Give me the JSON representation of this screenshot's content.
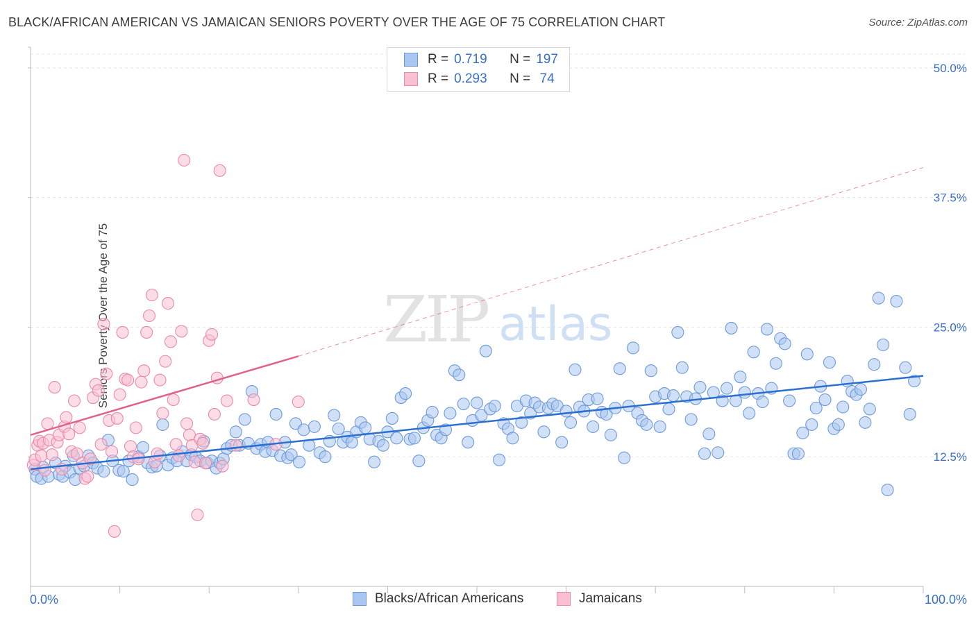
{
  "header": {
    "title": "BLACK/AFRICAN AMERICAN VS JAMAICAN SENIORS POVERTY OVER THE AGE OF 75 CORRELATION CHART",
    "source": "Source: ZipAtlas.com"
  },
  "watermark": {
    "zip": "ZIP",
    "atlas": "atlas"
  },
  "legend": {
    "rows": [
      {
        "r_label": "R =",
        "r_value": "0.719",
        "n_label": "N =",
        "n_value": "197",
        "color": "#a9c7f0",
        "border": "#6f9ad8"
      },
      {
        "r_label": "R =",
        "r_value": "0.293",
        "n_label": "N =",
        "n_value": " 74",
        "color": "#f9c0d2",
        "border": "#e98aab"
      }
    ]
  },
  "chart_data": {
    "type": "scatter",
    "title": "BLACK/AFRICAN AMERICAN VS JAMAICAN SENIORS POVERTY OVER THE AGE OF 75 CORRELATION CHART",
    "xlabel": "",
    "ylabel": "Seniors Poverty Over the Age of 75",
    "xlim": [
      0,
      100
    ],
    "ylim": [
      0,
      52
    ],
    "x_tick_labels": [
      "0.0%",
      "100.0%"
    ],
    "y_ticks": [
      12.5,
      25.0,
      37.5,
      50.0
    ],
    "y_tick_labels": [
      "12.5%",
      "25.0%",
      "37.5%",
      "50.0%"
    ],
    "grid": true,
    "legend_position": "top-center",
    "series": [
      {
        "name": "Blacks/African Americans",
        "color": "#a9c7f0",
        "stroke": "#6f9ad8",
        "line_color": "#2a6fd1",
        "trend": {
          "x0": 0,
          "y0": 11.3,
          "x1": 100,
          "y1": 20.3
        },
        "points": [
          [
            0.5,
            11.3
          ],
          [
            0.7,
            10.6
          ],
          [
            1.2,
            10.4
          ],
          [
            1.4,
            11.5
          ],
          [
            2.0,
            10.6
          ],
          [
            2.8,
            11.9
          ],
          [
            3.2,
            10.8
          ],
          [
            3.6,
            10.6
          ],
          [
            3.9,
            11.6
          ],
          [
            4.4,
            11.0
          ],
          [
            4.8,
            12.6
          ],
          [
            5.0,
            10.3
          ],
          [
            5.5,
            11.4
          ],
          [
            6.0,
            11.6
          ],
          [
            6.5,
            12.6
          ],
          [
            7.0,
            11.9
          ],
          [
            7.5,
            11.4
          ],
          [
            8.2,
            11.1
          ],
          [
            8.7,
            14.1
          ],
          [
            9.2,
            12.1
          ],
          [
            9.9,
            11.2
          ],
          [
            10.4,
            11.1
          ],
          [
            11.0,
            12.1
          ],
          [
            11.4,
            10.3
          ],
          [
            12.1,
            12.5
          ],
          [
            12.6,
            13.4
          ],
          [
            13.1,
            11.9
          ],
          [
            13.6,
            11.5
          ],
          [
            14.1,
            11.6
          ],
          [
            14.5,
            12.6
          ],
          [
            14.8,
            15.6
          ],
          [
            15.4,
            11.7
          ],
          [
            15.9,
            12.4
          ],
          [
            16.4,
            12.1
          ],
          [
            17.0,
            13.0
          ],
          [
            17.5,
            12.1
          ],
          [
            18.0,
            12.7
          ],
          [
            18.5,
            12.5
          ],
          [
            19.0,
            12.1
          ],
          [
            19.4,
            14.0
          ],
          [
            19.8,
            11.9
          ],
          [
            20.3,
            12.1
          ],
          [
            20.8,
            11.4
          ],
          [
            21.2,
            11.9
          ],
          [
            21.6,
            12.3
          ],
          [
            22.0,
            13.3
          ],
          [
            22.5,
            13.6
          ],
          [
            23.0,
            14.9
          ],
          [
            23.4,
            13.6
          ],
          [
            24.0,
            16.1
          ],
          [
            24.4,
            13.8
          ],
          [
            24.8,
            18.8
          ],
          [
            25.3,
            13.3
          ],
          [
            25.8,
            13.7
          ],
          [
            26.3,
            13.0
          ],
          [
            26.6,
            13.9
          ],
          [
            27.1,
            13.1
          ],
          [
            27.5,
            16.6
          ],
          [
            28.0,
            12.6
          ],
          [
            28.5,
            13.9
          ],
          [
            28.8,
            12.4
          ],
          [
            29.2,
            12.7
          ],
          [
            29.7,
            15.7
          ],
          [
            30.1,
            12.0
          ],
          [
            30.6,
            15.1
          ],
          [
            31.2,
            13.6
          ],
          [
            31.8,
            15.4
          ],
          [
            32.4,
            12.9
          ],
          [
            33.0,
            12.5
          ],
          [
            33.5,
            14.0
          ],
          [
            34.0,
            16.5
          ],
          [
            34.5,
            15.2
          ],
          [
            35.0,
            13.9
          ],
          [
            35.5,
            14.4
          ],
          [
            36.0,
            13.9
          ],
          [
            36.5,
            14.9
          ],
          [
            37.0,
            15.8
          ],
          [
            37.5,
            15.3
          ],
          [
            38.0,
            14.2
          ],
          [
            38.5,
            12.0
          ],
          [
            39.0,
            14.0
          ],
          [
            39.5,
            13.6
          ],
          [
            40.0,
            14.9
          ],
          [
            40.5,
            16.2
          ],
          [
            41.0,
            14.3
          ],
          [
            41.5,
            18.2
          ],
          [
            42.0,
            18.6
          ],
          [
            42.5,
            14.2
          ],
          [
            43.0,
            14.3
          ],
          [
            43.5,
            12.1
          ],
          [
            44.0,
            15.3
          ],
          [
            44.5,
            16.0
          ],
          [
            45.0,
            16.8
          ],
          [
            45.5,
            14.6
          ],
          [
            46.0,
            14.3
          ],
          [
            46.5,
            15.1
          ],
          [
            47.0,
            16.7
          ],
          [
            47.5,
            20.8
          ],
          [
            48.0,
            20.4
          ],
          [
            48.5,
            17.6
          ],
          [
            49.0,
            13.9
          ],
          [
            49.5,
            16.0
          ],
          [
            50.0,
            17.7
          ],
          [
            50.5,
            16.5
          ],
          [
            51.0,
            22.7
          ],
          [
            51.5,
            17.1
          ],
          [
            52.0,
            17.4
          ],
          [
            52.5,
            12.2
          ],
          [
            53.0,
            15.7
          ],
          [
            53.5,
            15.2
          ],
          [
            54.0,
            14.3
          ],
          [
            54.5,
            17.4
          ],
          [
            55.0,
            15.8
          ],
          [
            55.5,
            17.9
          ],
          [
            56.0,
            16.7
          ],
          [
            56.5,
            17.7
          ],
          [
            57.0,
            17.3
          ],
          [
            57.5,
            14.9
          ],
          [
            58.0,
            17.2
          ],
          [
            58.5,
            17.6
          ],
          [
            59.0,
            17.4
          ],
          [
            59.5,
            13.9
          ],
          [
            60.0,
            16.9
          ],
          [
            60.5,
            15.8
          ],
          [
            61.0,
            20.9
          ],
          [
            61.5,
            17.3
          ],
          [
            62.0,
            16.9
          ],
          [
            62.5,
            18.0
          ],
          [
            63.0,
            15.4
          ],
          [
            63.5,
            18.1
          ],
          [
            64.0,
            16.8
          ],
          [
            64.5,
            16.6
          ],
          [
            65.0,
            14.6
          ],
          [
            65.5,
            17.2
          ],
          [
            66.0,
            21.0
          ],
          [
            66.5,
            12.4
          ],
          [
            67.0,
            17.4
          ],
          [
            67.5,
            23.0
          ],
          [
            68.0,
            16.7
          ],
          [
            68.5,
            16.0
          ],
          [
            69.0,
            15.6
          ],
          [
            69.5,
            20.8
          ],
          [
            70.0,
            18.3
          ],
          [
            70.5,
            15.4
          ],
          [
            71.0,
            18.6
          ],
          [
            71.5,
            17.1
          ],
          [
            72.0,
            18.4
          ],
          [
            72.5,
            24.5
          ],
          [
            73.0,
            21.1
          ],
          [
            73.5,
            18.3
          ],
          [
            74.0,
            16.1
          ],
          [
            74.5,
            18.1
          ],
          [
            75.0,
            19.2
          ],
          [
            75.5,
            12.8
          ],
          [
            76.0,
            14.7
          ],
          [
            76.5,
            18.7
          ],
          [
            77.0,
            12.9
          ],
          [
            77.5,
            17.9
          ],
          [
            78.0,
            19.1
          ],
          [
            78.5,
            24.9
          ],
          [
            79.0,
            17.9
          ],
          [
            79.5,
            20.2
          ],
          [
            80.0,
            18.7
          ],
          [
            80.5,
            16.7
          ],
          [
            81.0,
            22.6
          ],
          [
            81.5,
            18.6
          ],
          [
            82.0,
            17.8
          ],
          [
            82.5,
            24.8
          ],
          [
            83.0,
            19.1
          ],
          [
            83.5,
            21.5
          ],
          [
            84.0,
            23.9
          ],
          [
            84.5,
            23.4
          ],
          [
            85.0,
            17.9
          ],
          [
            85.5,
            12.8
          ],
          [
            86.0,
            12.8
          ],
          [
            86.5,
            14.8
          ],
          [
            87.0,
            22.4
          ],
          [
            87.5,
            15.6
          ],
          [
            88.0,
            17.2
          ],
          [
            88.5,
            19.3
          ],
          [
            89.0,
            18.0
          ],
          [
            89.5,
            21.6
          ],
          [
            90.0,
            15.2
          ],
          [
            90.5,
            15.6
          ],
          [
            91.0,
            17.3
          ],
          [
            91.5,
            19.8
          ],
          [
            92.0,
            18.8
          ],
          [
            92.5,
            18.5
          ],
          [
            93.0,
            19.0
          ],
          [
            93.5,
            15.8
          ],
          [
            94.0,
            17.1
          ],
          [
            94.5,
            21.4
          ],
          [
            95.0,
            27.8
          ],
          [
            95.5,
            23.3
          ],
          [
            96.0,
            9.3
          ],
          [
            97.0,
            27.5
          ],
          [
            98.0,
            21.1
          ],
          [
            98.5,
            16.6
          ],
          [
            99.0,
            19.8
          ]
        ]
      },
      {
        "name": "Jamaicans",
        "color": "#f9c0d2",
        "stroke": "#e98aab",
        "line_color": "#e0628c",
        "trend": {
          "x0": 0,
          "y0": 14.6,
          "x1": 30,
          "y1": 22.2
        },
        "trend_extension": {
          "x0": 30,
          "y0": 22.2,
          "x1": 100,
          "y1": 40.4
        },
        "points": [
          [
            0.3,
            11.7
          ],
          [
            0.5,
            12.2
          ],
          [
            0.8,
            13.6
          ],
          [
            1.0,
            14.0
          ],
          [
            1.2,
            12.6
          ],
          [
            1.4,
            13.8
          ],
          [
            1.6,
            11.2
          ],
          [
            1.9,
            15.7
          ],
          [
            2.1,
            14.1
          ],
          [
            2.4,
            12.7
          ],
          [
            2.7,
            19.2
          ],
          [
            3.0,
            13.9
          ],
          [
            3.2,
            14.6
          ],
          [
            3.5,
            11.3
          ],
          [
            3.8,
            15.4
          ],
          [
            4.0,
            16.3
          ],
          [
            4.3,
            14.7
          ],
          [
            4.6,
            13.0
          ],
          [
            4.9,
            17.9
          ],
          [
            5.2,
            12.8
          ],
          [
            5.5,
            15.3
          ],
          [
            5.8,
            11.9
          ],
          [
            6.1,
            10.4
          ],
          [
            6.4,
            10.6
          ],
          [
            6.7,
            12.3
          ],
          [
            7.0,
            18.2
          ],
          [
            7.3,
            19.5
          ],
          [
            7.6,
            18.9
          ],
          [
            7.9,
            13.7
          ],
          [
            8.2,
            25.3
          ],
          [
            8.5,
            20.5
          ],
          [
            8.8,
            16.0
          ],
          [
            9.1,
            13.0
          ],
          [
            9.4,
            5.3
          ],
          [
            9.7,
            16.2
          ],
          [
            10.0,
            18.5
          ],
          [
            10.3,
            24.5
          ],
          [
            10.6,
            20.0
          ],
          [
            10.9,
            19.9
          ],
          [
            11.2,
            13.5
          ],
          [
            11.5,
            12.5
          ],
          [
            11.8,
            15.3
          ],
          [
            12.1,
            12.3
          ],
          [
            12.4,
            19.7
          ],
          [
            12.7,
            20.8
          ],
          [
            13.0,
            24.5
          ],
          [
            13.3,
            26.1
          ],
          [
            13.6,
            28.1
          ],
          [
            13.9,
            12.0
          ],
          [
            14.2,
            12.8
          ],
          [
            14.5,
            19.9
          ],
          [
            14.8,
            16.7
          ],
          [
            15.1,
            21.7
          ],
          [
            15.4,
            27.3
          ],
          [
            15.7,
            23.6
          ],
          [
            16.0,
            18.0
          ],
          [
            16.3,
            13.7
          ],
          [
            16.6,
            12.6
          ],
          [
            16.9,
            24.6
          ],
          [
            17.2,
            41.1
          ],
          [
            17.5,
            15.7
          ],
          [
            17.8,
            14.6
          ],
          [
            18.1,
            13.6
          ],
          [
            18.4,
            12.0
          ],
          [
            18.7,
            6.9
          ],
          [
            19.0,
            14.2
          ],
          [
            19.3,
            13.8
          ],
          [
            19.6,
            11.9
          ],
          [
            20.0,
            23.7
          ],
          [
            20.3,
            24.3
          ],
          [
            20.6,
            16.6
          ],
          [
            20.9,
            20.1
          ],
          [
            21.2,
            40.1
          ],
          [
            21.5,
            11.6
          ],
          [
            22.0,
            17.9
          ],
          [
            23.0,
            13.6
          ],
          [
            25.0,
            18.0
          ],
          [
            27.5,
            13.7
          ],
          [
            30.0,
            17.8
          ]
        ]
      }
    ]
  }
}
